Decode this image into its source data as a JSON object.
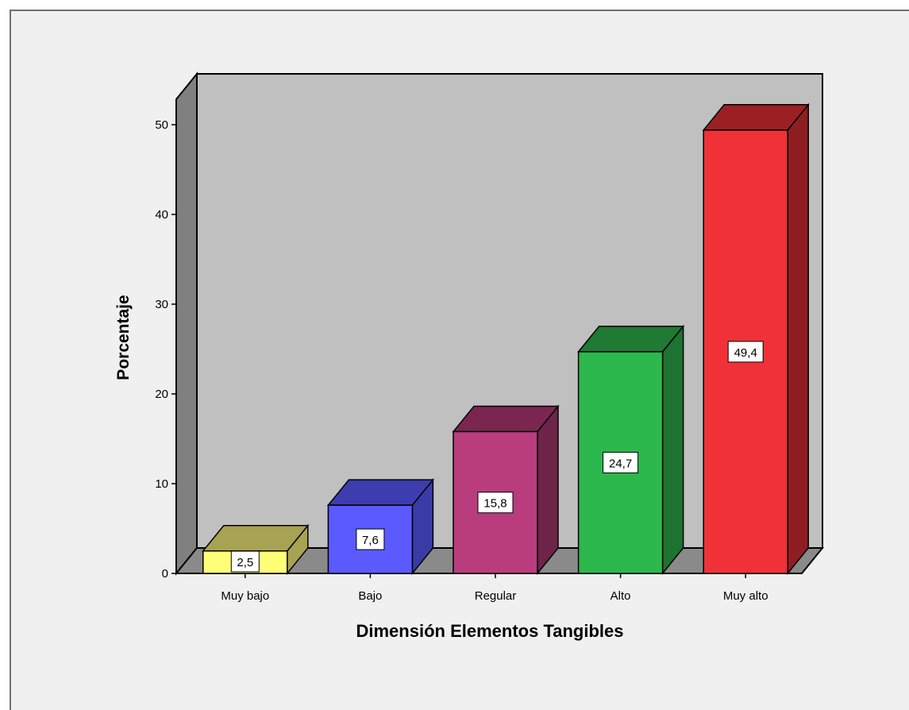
{
  "chart_data": {
    "type": "bar",
    "title": "",
    "xlabel": "Dimensión Elementos Tangibles",
    "ylabel": "Porcentaje",
    "categories": [
      "Muy bajo",
      "Bajo",
      "Regular",
      "Alto",
      "Muy alto"
    ],
    "values": [
      2.5,
      7.6,
      15.8,
      24.7,
      49.4
    ],
    "data_labels": [
      "2,5",
      "7,6",
      "15,8",
      "24,7",
      "49,4"
    ],
    "yticks": [
      "0",
      "10",
      "20",
      "30",
      "40",
      "50"
    ],
    "ylim": [
      0,
      50
    ],
    "style": "3d",
    "legend": "none",
    "grid": false,
    "colors": {
      "frame_bg": "#f0f0f0",
      "wall": "#c0c0c0",
      "side_wall": "#808080",
      "floor": "#8a8a8a",
      "bars": [
        {
          "front": "#ffff77",
          "top": "#a8a352",
          "side": "#a8a352"
        },
        {
          "front": "#5a5aff",
          "top": "#3d3db0",
          "side": "#3b3ba8"
        },
        {
          "front": "#b93d7d",
          "top": "#7a2650",
          "side": "#6e2448"
        },
        {
          "front": "#2db84d",
          "top": "#1f7a34",
          "side": "#1d7330"
        },
        {
          "front": "#f03238",
          "top": "#9a2024",
          "side": "#8e1e22"
        }
      ]
    }
  }
}
